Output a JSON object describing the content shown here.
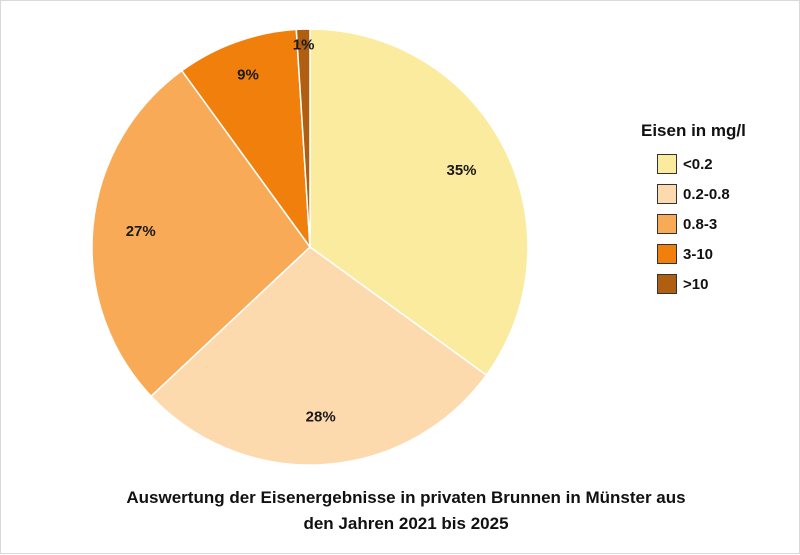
{
  "chart_data": {
    "type": "pie",
    "title_lines": [
      "Auswertung der Eisenergebnisse in privaten Brunnen in Münster aus",
      "den Jahren 2021 bis 2025"
    ],
    "legend_title": "Eisen in mg/l",
    "legend_placement": "right",
    "slices": [
      {
        "label": "<0.2",
        "value": 35,
        "display": "35%",
        "color": "#FBEB9E"
      },
      {
        "label": "0.2-0.8",
        "value": 28,
        "display": "28%",
        "color": "#FDD9AE"
      },
      {
        "label": "0.8-3",
        "value": 27,
        "display": "27%",
        "color": "#F9AA56"
      },
      {
        "label": "3-10",
        "value": 9,
        "display": "9%",
        "color": "#F07F0C"
      },
      {
        "label": ">10",
        "value": 1,
        "display": "1%",
        "color": "#B05E10"
      }
    ]
  }
}
